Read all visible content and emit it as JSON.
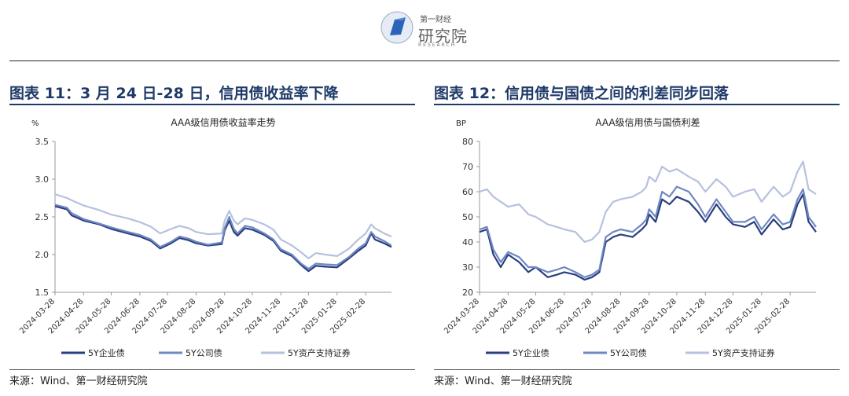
{
  "header": {
    "logo_cn_small": "第一财经",
    "logo_cn_large": "研究院",
    "logo_en": "RESEARCH"
  },
  "panels": [
    {
      "title": "图表 11：3 月 24 日-28 日，信用债收益率下降",
      "source": "来源：Wind、第一财经研究院"
    },
    {
      "title": "图表 12：信用债与国债之间的利差同步回落",
      "source": "来源：Wind、第一财经研究院"
    }
  ],
  "chart_data": [
    {
      "type": "line",
      "title": "AAA级信用债收益率走势",
      "unit": "%",
      "ylim": [
        1.5,
        3.5
      ],
      "yticks": [
        "1.5",
        "2.0",
        "2.5",
        "3.0",
        "3.5"
      ],
      "xlim": [
        "2024-03-28",
        "2025-03-28"
      ],
      "xticks": [
        "2024-03-28",
        "2024-04-28",
        "2024-05-28",
        "2024-06-28",
        "2024-07-28",
        "2024-08-28",
        "2024-09-28",
        "2024-10-28",
        "2024-11-28",
        "2024-12-28",
        "2025-01-28",
        "2025-02-28"
      ],
      "grid": false,
      "legend": "bottom",
      "x": [
        "2024-03-28",
        "2024-04-10",
        "2024-04-15",
        "2024-04-28",
        "2024-05-15",
        "2024-05-28",
        "2024-06-15",
        "2024-06-28",
        "2024-07-10",
        "2024-07-20",
        "2024-08-01",
        "2024-08-10",
        "2024-08-20",
        "2024-08-28",
        "2024-09-10",
        "2024-09-25",
        "2024-09-28",
        "2024-10-03",
        "2024-10-08",
        "2024-10-12",
        "2024-10-20",
        "2024-10-28",
        "2024-11-10",
        "2024-11-20",
        "2024-11-28",
        "2024-12-10",
        "2024-12-20",
        "2024-12-28",
        "2025-01-05",
        "2025-01-15",
        "2025-01-28",
        "2025-02-10",
        "2025-02-20",
        "2025-02-28",
        "2025-03-06",
        "2025-03-10",
        "2025-03-20",
        "2025-03-28"
      ],
      "series": [
        {
          "name": "5Y企业债",
          "color": "#283f7f",
          "values": [
            2.64,
            2.6,
            2.52,
            2.45,
            2.4,
            2.34,
            2.28,
            2.24,
            2.18,
            2.08,
            2.15,
            2.22,
            2.19,
            2.15,
            2.12,
            2.14,
            2.32,
            2.45,
            2.3,
            2.25,
            2.35,
            2.33,
            2.26,
            2.18,
            2.05,
            1.98,
            1.86,
            1.78,
            1.85,
            1.84,
            1.83,
            1.95,
            2.05,
            2.12,
            2.28,
            2.2,
            2.15,
            2.1
          ]
        },
        {
          "name": "5Y公司债",
          "color": "#6f87c2",
          "values": [
            2.66,
            2.62,
            2.55,
            2.47,
            2.41,
            2.36,
            2.3,
            2.26,
            2.2,
            2.1,
            2.17,
            2.24,
            2.21,
            2.17,
            2.13,
            2.16,
            2.35,
            2.5,
            2.34,
            2.28,
            2.38,
            2.36,
            2.28,
            2.2,
            2.07,
            2.0,
            1.88,
            1.81,
            1.88,
            1.87,
            1.86,
            1.97,
            2.08,
            2.15,
            2.3,
            2.24,
            2.18,
            2.12
          ]
        },
        {
          "name": "5Y资产支持证券",
          "color": "#b5c1de",
          "values": [
            2.8,
            2.75,
            2.72,
            2.65,
            2.59,
            2.53,
            2.48,
            2.43,
            2.37,
            2.28,
            2.34,
            2.38,
            2.35,
            2.3,
            2.27,
            2.28,
            2.45,
            2.58,
            2.45,
            2.4,
            2.48,
            2.46,
            2.4,
            2.33,
            2.2,
            2.12,
            2.03,
            1.95,
            2.02,
            2.0,
            1.98,
            2.08,
            2.2,
            2.28,
            2.4,
            2.35,
            2.28,
            2.24
          ]
        }
      ]
    },
    {
      "type": "line",
      "title": "AAA级信用债与国债利差",
      "unit": "BP",
      "ylim": [
        20,
        80
      ],
      "yticks": [
        "20",
        "30",
        "40",
        "50",
        "60",
        "70",
        "80"
      ],
      "xlim": [
        "2024-03-28",
        "2025-03-28"
      ],
      "xticks": [
        "2024-03-28",
        "2024-04-28",
        "2024-05-28",
        "2024-06-28",
        "2024-07-28",
        "2024-08-28",
        "2024-09-28",
        "2024-10-28",
        "2024-11-28",
        "2024-12-28",
        "2025-01-28",
        "2025-02-28"
      ],
      "grid": false,
      "legend": "bottom",
      "x": [
        "2024-03-28",
        "2024-04-05",
        "2024-04-12",
        "2024-04-20",
        "2024-04-28",
        "2024-05-10",
        "2024-05-20",
        "2024-05-28",
        "2024-06-10",
        "2024-06-20",
        "2024-06-28",
        "2024-07-10",
        "2024-07-20",
        "2024-07-28",
        "2024-08-05",
        "2024-08-12",
        "2024-08-20",
        "2024-08-28",
        "2024-09-10",
        "2024-09-20",
        "2024-09-25",
        "2024-09-28",
        "2024-10-05",
        "2024-10-12",
        "2024-10-20",
        "2024-10-28",
        "2024-11-10",
        "2024-11-20",
        "2024-11-28",
        "2024-12-10",
        "2024-12-20",
        "2024-12-28",
        "2025-01-10",
        "2025-01-20",
        "2025-01-28",
        "2025-02-10",
        "2025-02-20",
        "2025-02-28",
        "2025-03-08",
        "2025-03-14",
        "2025-03-20",
        "2025-03-28"
      ],
      "series": [
        {
          "name": "5Y企业债",
          "color": "#283f7f",
          "values": [
            44,
            45,
            35,
            30,
            35,
            32,
            28,
            30,
            26,
            27,
            28,
            27,
            25,
            26,
            28,
            40,
            42,
            43,
            42,
            45,
            47,
            51,
            48,
            57,
            55,
            58,
            56,
            52,
            48,
            55,
            50,
            47,
            46,
            48,
            43,
            49,
            45,
            46,
            55,
            59,
            48,
            44
          ]
        },
        {
          "name": "5Y公司债",
          "color": "#6f87c2",
          "values": [
            45,
            46,
            37,
            32,
            36,
            34,
            30,
            30,
            28,
            29,
            30,
            28,
            26,
            27,
            29,
            42,
            44,
            45,
            44,
            47,
            49,
            53,
            50,
            60,
            58,
            62,
            60,
            55,
            50,
            57,
            52,
            48,
            48,
            50,
            45,
            51,
            47,
            48,
            57,
            61,
            50,
            46
          ]
        },
        {
          "name": "5Y资产支持证券",
          "color": "#b5c1de",
          "values": [
            60,
            61,
            58,
            56,
            54,
            55,
            51,
            50,
            47,
            46,
            45,
            44,
            40,
            41,
            44,
            52,
            56,
            57,
            58,
            60,
            62,
            66,
            64,
            70,
            68,
            69,
            66,
            64,
            60,
            65,
            62,
            58,
            60,
            61,
            56,
            62,
            58,
            60,
            68,
            72,
            61,
            59
          ]
        }
      ]
    }
  ]
}
